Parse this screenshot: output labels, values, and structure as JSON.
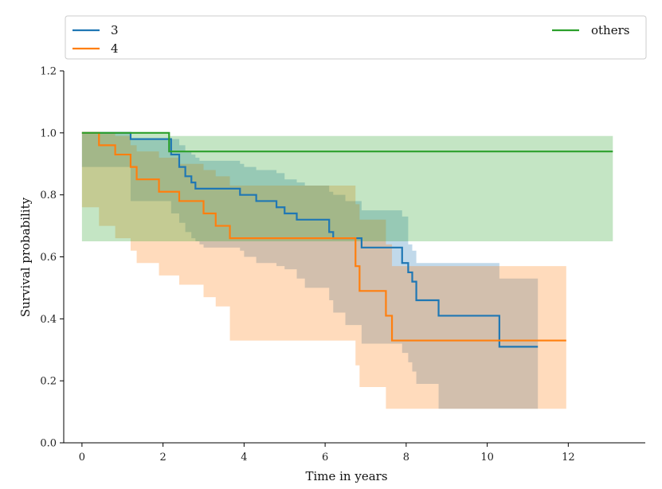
{
  "chart_data": {
    "type": "line",
    "subtype": "kaplan-meier step plot with confidence bands",
    "title": "",
    "xlabel": "Time in years",
    "ylabel": "Survival probability",
    "xlim": [
      -0.45,
      13.9
    ],
    "ylim": [
      0.0,
      1.2
    ],
    "xticks": [
      0,
      2,
      4,
      6,
      8,
      10,
      12
    ],
    "yticks": [
      0.0,
      0.2,
      0.4,
      0.6,
      0.8,
      1.0,
      1.2
    ],
    "xtick_labels": [
      "0",
      "2",
      "4",
      "6",
      "8",
      "10",
      "12"
    ],
    "ytick_labels": [
      "0.0",
      "0.2",
      "0.4",
      "0.6",
      "0.8",
      "1.0",
      "1.2"
    ],
    "grid": false,
    "legend": {
      "placement": "top, outside the axes",
      "left_entries": [
        "3",
        "4"
      ],
      "right_entries": [
        "others"
      ]
    },
    "series": [
      {
        "name": "3",
        "color": "#1f77b4",
        "x": [
          0,
          1.2,
          2.2,
          2.4,
          2.55,
          2.7,
          2.8,
          2.9,
          3.0,
          3.9,
          4.0,
          4.3,
          4.8,
          5.0,
          5.3,
          5.5,
          6.1,
          6.2,
          6.5,
          6.9,
          7.9,
          8.05,
          8.15,
          8.25,
          8.8,
          10.3,
          11.25
        ],
        "y": [
          1.0,
          0.98,
          0.93,
          0.89,
          0.86,
          0.84,
          0.82,
          0.82,
          0.82,
          0.8,
          0.8,
          0.78,
          0.76,
          0.74,
          0.72,
          0.72,
          0.68,
          0.66,
          0.66,
          0.63,
          0.58,
          0.55,
          0.52,
          0.46,
          0.41,
          0.31,
          0.31
        ],
        "ci_lower": [
          1.0,
          0.89,
          0.78,
          0.74,
          0.71,
          0.68,
          0.66,
          0.65,
          0.64,
          0.63,
          0.62,
          0.6,
          0.58,
          0.57,
          0.56,
          0.53,
          0.5,
          0.46,
          0.42,
          0.38,
          0.32,
          0.29,
          0.26,
          0.23,
          0.19,
          0.11,
          0.11
        ],
        "ci_upper": [
          1.0,
          0.98,
          0.98,
          0.96,
          0.94,
          0.93,
          0.92,
          0.91,
          0.91,
          0.9,
          0.89,
          0.88,
          0.87,
          0.85,
          0.84,
          0.83,
          0.81,
          0.8,
          0.78,
          0.75,
          0.73,
          0.64,
          0.62,
          0.58,
          0.58,
          0.53,
          0.53
        ]
      },
      {
        "name": "4",
        "color": "#ff7f0e",
        "x": [
          0,
          0.42,
          0.82,
          1.2,
          1.35,
          1.9,
          2.4,
          3.0,
          3.3,
          3.65,
          6.75,
          6.85,
          7.5,
          7.65,
          11.95
        ],
        "y": [
          1.0,
          0.96,
          0.93,
          0.89,
          0.85,
          0.81,
          0.78,
          0.74,
          0.7,
          0.66,
          0.57,
          0.49,
          0.41,
          0.33,
          0.33
        ],
        "ci_lower": [
          1.0,
          0.76,
          0.7,
          0.66,
          0.62,
          0.58,
          0.54,
          0.51,
          0.47,
          0.44,
          0.33,
          0.25,
          0.18,
          0.11,
          0.11
        ],
        "ci_upper": [
          1.0,
          1.0,
          0.99,
          0.96,
          0.94,
          0.92,
          0.9,
          0.88,
          0.86,
          0.83,
          0.77,
          0.72,
          0.64,
          0.57,
          0.57
        ]
      },
      {
        "name": "others",
        "color": "#2ca02c",
        "x": [
          0,
          2.15,
          13.1
        ],
        "y": [
          1.0,
          0.94,
          0.94
        ],
        "ci_lower": [
          1.0,
          0.65,
          0.65
        ],
        "ci_upper": [
          1.0,
          0.99,
          0.99
        ]
      }
    ]
  }
}
